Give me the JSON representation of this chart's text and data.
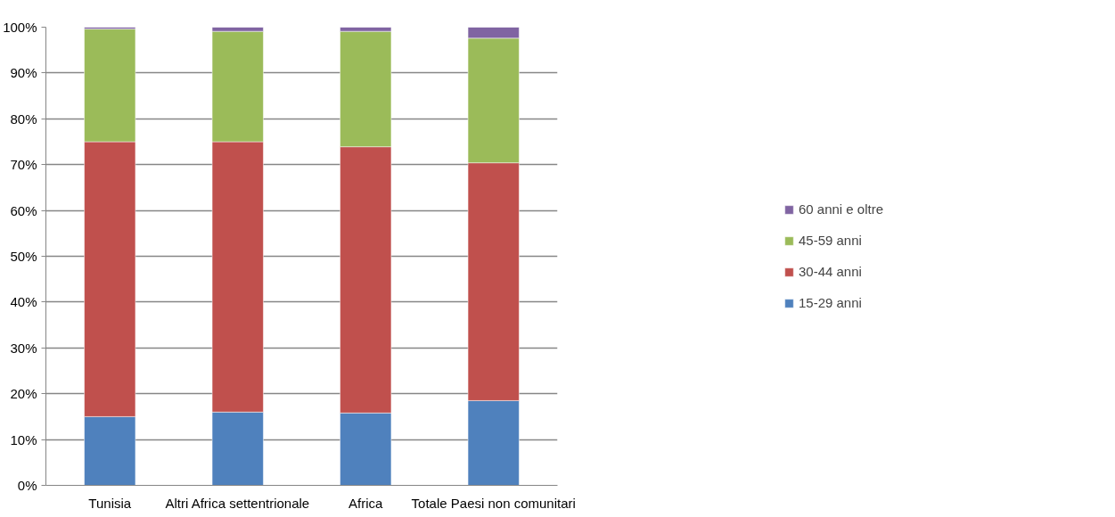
{
  "chart_data": {
    "type": "bar",
    "stacked": true,
    "categories": [
      "Tunisia",
      "Altri Africa settentrionale",
      "Africa",
      "Totale Paesi non comunitari"
    ],
    "series": [
      {
        "name": "15-29 anni",
        "color": "#4f81bd",
        "values": [
          15,
          16,
          15.8,
          18.5
        ]
      },
      {
        "name": "30-44 anni",
        "color": "#c0504d",
        "values": [
          60,
          59,
          58.1,
          51.9
        ]
      },
      {
        "name": "45-59 anni",
        "color": "#9bbb59",
        "values": [
          24.6,
          24.1,
          25.2,
          27.2
        ]
      },
      {
        "name": "60 anni e oltre",
        "color": "#8064a2",
        "values": [
          0.4,
          0.9,
          0.9,
          2.4
        ]
      }
    ],
    "ylim": [
      0,
      100
    ],
    "yticks": [
      {
        "value": 0,
        "label": "0%"
      },
      {
        "value": 10,
        "label": "10%"
      },
      {
        "value": 20,
        "label": "20%"
      },
      {
        "value": 30,
        "label": "30%"
      },
      {
        "value": 40,
        "label": "40%"
      },
      {
        "value": 50,
        "label": "50%"
      },
      {
        "value": 60,
        "label": "60%"
      },
      {
        "value": 70,
        "label": "70%"
      },
      {
        "value": 80,
        "label": "80%"
      },
      {
        "value": 90,
        "label": "90%"
      },
      {
        "value": 100,
        "label": "100%"
      }
    ],
    "grid": "y",
    "legend": "right"
  }
}
